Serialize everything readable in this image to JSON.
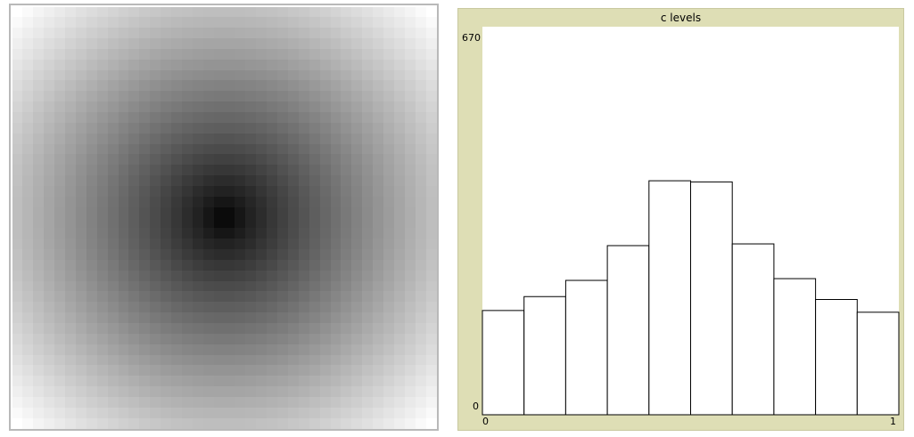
{
  "world": {
    "colormap": "grayscale",
    "grid_size": 40,
    "center_value": 0.0,
    "corner_value": 1.0
  },
  "plot": {
    "title": "c levels",
    "y_max_label": "670",
    "y_min_label": "0",
    "x_min_label": "0",
    "x_max_label": "1",
    "bar_fill": "#ffffff",
    "bar_stroke": "#000000",
    "background": "#dedeb5"
  },
  "chart_data": {
    "type": "bar",
    "title": "c levels",
    "xlabel": "",
    "ylabel": "",
    "xlim": [
      0,
      1
    ],
    "ylim": [
      0,
      670
    ],
    "bins": 10,
    "values": [
      180,
      204,
      232,
      292,
      404,
      402,
      295,
      235,
      199,
      177
    ]
  }
}
